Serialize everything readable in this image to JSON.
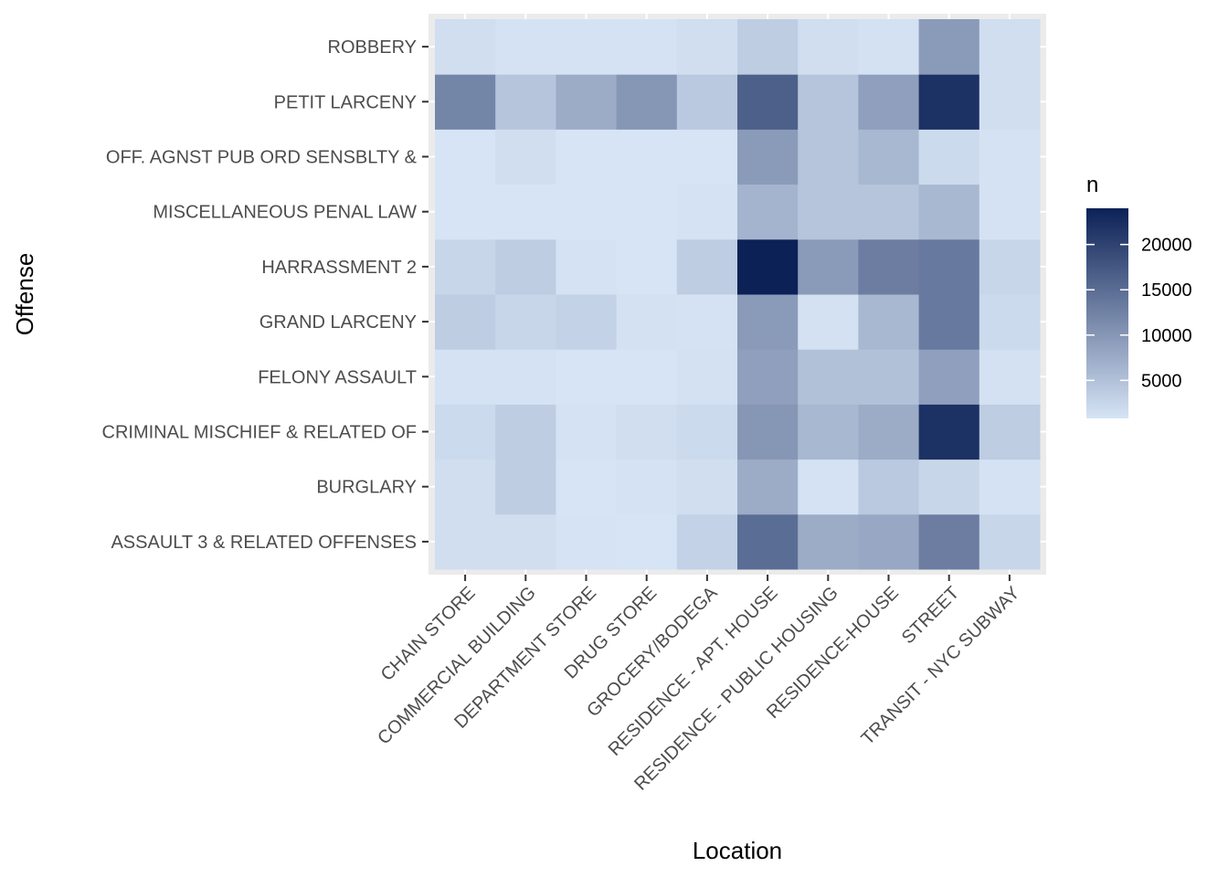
{
  "chart_data": {
    "type": "heatmap",
    "title": "",
    "xlabel": "Location",
    "ylabel": "Offense",
    "x_categories": [
      "CHAIN STORE",
      "COMMERCIAL BUILDING",
      "DEPARTMENT STORE",
      "DRUG STORE",
      "GROCERY/BODEGA",
      "RESIDENCE - APT. HOUSE",
      "RESIDENCE - PUBLIC HOUSING",
      "RESIDENCE-HOUSE",
      "STREET",
      "TRANSIT - NYC SUBWAY"
    ],
    "y_categories": [
      "ASSAULT 3 & RELATED OFFENSES",
      "BURGLARY",
      "CRIMINAL MISCHIEF & RELATED OF",
      "FELONY ASSAULT",
      "GRAND LARCENY",
      "HARRASSMENT 2",
      "MISCELLANEOUS PENAL LAW",
      "OFF. AGNST PUB ORD SENSBLTY &",
      "PETIT LARCENY",
      "ROBBERY"
    ],
    "values": [
      [
        1500,
        1500,
        900,
        800,
        3000,
        15000,
        7500,
        8000,
        13000,
        2500
      ],
      [
        1500,
        3500,
        800,
        1000,
        1500,
        7500,
        1000,
        4000,
        2500,
        1000
      ],
      [
        2000,
        3500,
        1000,
        1500,
        2000,
        10000,
        6000,
        7500,
        22000,
        3500
      ],
      [
        1000,
        1000,
        800,
        800,
        1200,
        9000,
        5000,
        5000,
        9000,
        1200
      ],
      [
        3500,
        2500,
        3000,
        1200,
        1000,
        9500,
        1200,
        6000,
        13500,
        2000
      ],
      [
        2500,
        3500,
        1000,
        800,
        3500,
        24000,
        9500,
        13000,
        13500,
        2500
      ],
      [
        800,
        800,
        800,
        800,
        1000,
        6500,
        4500,
        4500,
        6000,
        1000
      ],
      [
        800,
        1500,
        800,
        800,
        800,
        9500,
        4500,
        6000,
        2000,
        1000
      ],
      [
        12000,
        4500,
        7500,
        10000,
        4000,
        16500,
        4500,
        9000,
        22000,
        1500
      ],
      [
        1500,
        1000,
        1000,
        1000,
        1500,
        3500,
        1500,
        1200,
        9500,
        1500
      ]
    ],
    "legend": {
      "title": "n",
      "ticks": [
        5000,
        10000,
        15000,
        20000
      ],
      "tick_labels": [
        "5000",
        "10000",
        "15000",
        "20000"
      ],
      "range": [
        800,
        24000
      ],
      "low_color": "#d6e4f5",
      "high_color": "#0c2156"
    },
    "panel_background": "#ebebeb",
    "grid": true,
    "legend_position": "right"
  }
}
